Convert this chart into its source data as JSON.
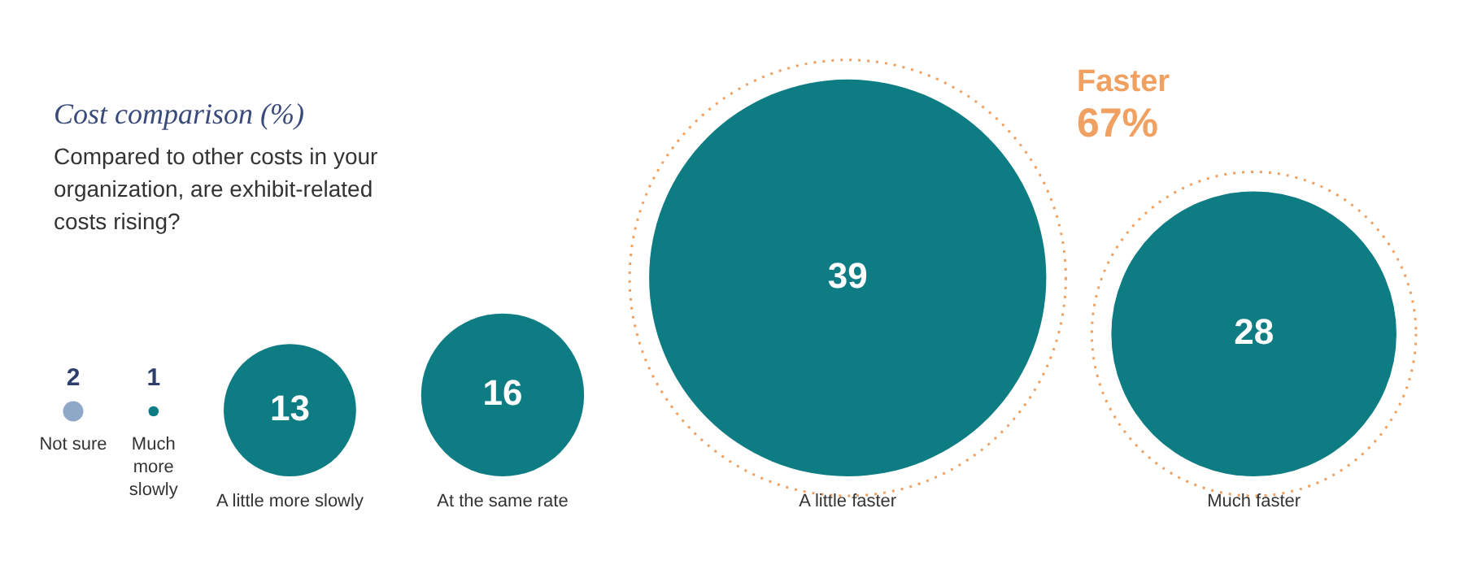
{
  "chart_data": {
    "type": "other",
    "title": "Cost comparison (%)",
    "subtitle": "Compared to other costs in your organization, are exhibit-related costs rising?",
    "categories": [
      "Not sure",
      "Much more slowly",
      "A little more slowly",
      "At the same rate",
      "A little faster",
      "Much faster"
    ],
    "values": [
      2,
      1,
      13,
      16,
      39,
      28
    ],
    "colors": [
      "#8fa8c8",
      "#0e7c83",
      "#0e7c83",
      "#0e7c83",
      "#0e7c83",
      "#0e7c83"
    ],
    "data_labels": true,
    "annotations": [
      "Faster",
      "67%"
    ]
  }
}
